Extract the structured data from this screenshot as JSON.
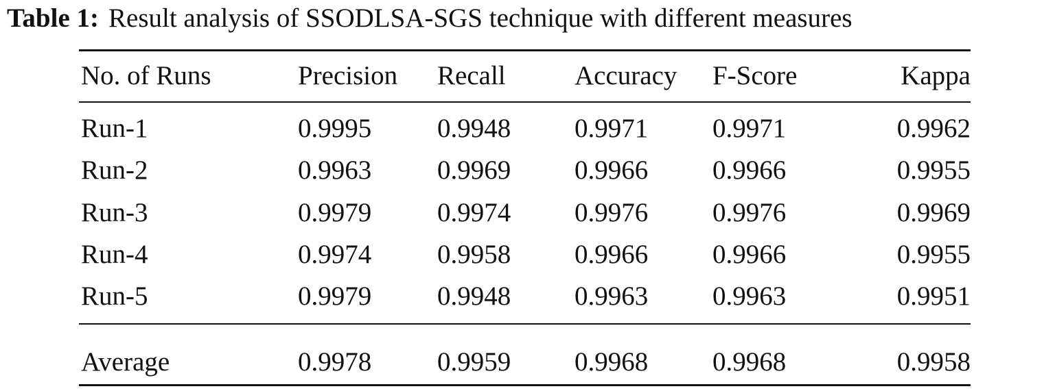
{
  "caption": {
    "label": "Table 1:",
    "text": "Result analysis of SSODLSA-SGS technique with different measures"
  },
  "table": {
    "headers": [
      "No. of Runs",
      "Precision",
      "Recall",
      "Accuracy",
      "F-Score",
      "Kappa"
    ],
    "rows": [
      [
        "Run-1",
        "0.9995",
        "0.9948",
        "0.9971",
        "0.9971",
        "0.9962"
      ],
      [
        "Run-2",
        "0.9963",
        "0.9969",
        "0.9966",
        "0.9966",
        "0.9955"
      ],
      [
        "Run-3",
        "0.9979",
        "0.9974",
        "0.9976",
        "0.9976",
        "0.9969"
      ],
      [
        "Run-4",
        "0.9974",
        "0.9958",
        "0.9966",
        "0.9966",
        "0.9955"
      ],
      [
        "Run-5",
        "0.9979",
        "0.9948",
        "0.9963",
        "0.9963",
        "0.9951"
      ]
    ],
    "summary": [
      "Average",
      "0.9978",
      "0.9959",
      "0.9968",
      "0.9968",
      "0.9958"
    ]
  }
}
